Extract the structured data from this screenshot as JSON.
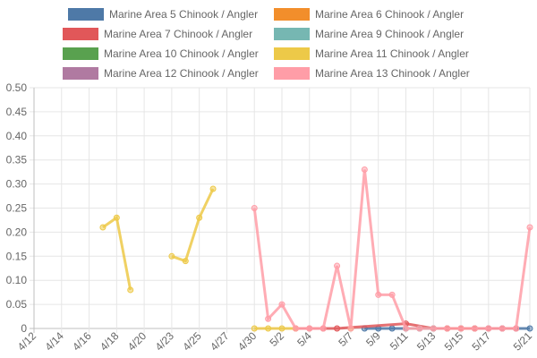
{
  "chart_data": {
    "type": "line",
    "title": "",
    "xlabel": "",
    "ylabel": "",
    "ylim": [
      0,
      0.5
    ],
    "y_ticks": [
      "0",
      "0.05",
      "0.10",
      "0.15",
      "0.20",
      "0.25",
      "0.30",
      "0.35",
      "0.40",
      "0.45",
      "0.50"
    ],
    "x_tick_labels": [
      "4/12",
      "4/14",
      "4/16",
      "4/18",
      "4/20",
      "4/23",
      "4/25",
      "4/27",
      "4/30",
      "5/2",
      "5/4",
      "5/7",
      "5/9",
      "5/11",
      "5/13",
      "5/15",
      "5/17",
      "5/21"
    ],
    "categories": [
      "4/12",
      "4/13",
      "4/14",
      "4/15",
      "4/16",
      "4/17",
      "4/18",
      "4/19",
      "4/20",
      "4/22",
      "4/23",
      "4/24",
      "4/25",
      "4/26",
      "4/27",
      "4/29",
      "4/30",
      "5/1",
      "5/2",
      "5/3",
      "5/4",
      "5/5",
      "5/6",
      "5/7",
      "5/8",
      "5/9",
      "5/10",
      "5/11",
      "5/12",
      "5/13",
      "5/14",
      "5/15",
      "5/16",
      "5/17",
      "5/18",
      "5/19",
      "5/21"
    ],
    "legend_position": "top",
    "grid": true,
    "series": [
      {
        "name": "Marine Area 5 Chinook / Angler",
        "color": "#4e79a7",
        "points": [
          [
            "5/8",
            0
          ],
          [
            "5/9",
            0
          ],
          [
            "5/10",
            0
          ],
          [
            "5/11",
            0
          ],
          [
            "5/12",
            0
          ],
          [
            "5/13",
            0
          ],
          [
            "5/14",
            0
          ],
          [
            "5/15",
            0
          ],
          [
            "5/16",
            0
          ],
          [
            "5/17",
            0
          ],
          [
            "5/18",
            0
          ],
          [
            "5/19",
            0
          ],
          [
            "5/21",
            0
          ]
        ]
      },
      {
        "name": "Marine Area 6 Chinook / Angler",
        "color": "#f28e2b",
        "points": [
          [
            "5/14",
            0
          ],
          [
            "5/15",
            0
          ],
          [
            "5/16",
            0
          ]
        ]
      },
      {
        "name": "Marine Area 7 Chinook / Angler",
        "color": "#e15759",
        "points": [
          [
            "5/3",
            0
          ],
          [
            "5/4",
            0
          ],
          [
            "5/5",
            0
          ],
          [
            "5/6",
            0
          ],
          [
            "5/11",
            0.01
          ],
          [
            "5/13",
            0
          ],
          [
            "5/14",
            0
          ],
          [
            "5/15",
            0
          ],
          [
            "5/16",
            0
          ],
          [
            "5/17",
            0
          ],
          [
            "5/18",
            0
          ],
          [
            "5/19",
            0
          ]
        ]
      },
      {
        "name": "Marine Area 9 Chinook / Angler",
        "color": "#76b7b2",
        "points": [
          [
            "5/11",
            0
          ],
          [
            "5/12",
            0
          ],
          [
            "5/13",
            0
          ]
        ]
      },
      {
        "name": "Marine Area 10 Chinook / Angler",
        "color": "#59a14f",
        "points": []
      },
      {
        "name": "Marine Area 11 Chinook / Angler",
        "color": "#edc948",
        "points": [
          [
            "4/17",
            0.21
          ],
          [
            "4/18",
            0.23
          ],
          [
            "4/19",
            0.08
          ],
          null,
          [
            "4/23",
            0.15
          ],
          [
            "4/24",
            0.14
          ],
          [
            "4/25",
            0.23
          ],
          [
            "4/26",
            0.29
          ],
          null,
          [
            "4/30",
            0
          ],
          [
            "5/1",
            0
          ],
          [
            "5/2",
            0
          ],
          [
            "5/3",
            0
          ],
          null,
          [
            "5/7",
            0
          ]
        ]
      },
      {
        "name": "Marine Area 12 Chinook / Angler",
        "color": "#b07aa1",
        "points": []
      },
      {
        "name": "Marine Area 13 Chinook / Angler",
        "color": "#ff9da7",
        "points": [
          [
            "4/30",
            0.25
          ],
          [
            "5/1",
            0.02
          ],
          [
            "5/2",
            0.05
          ],
          [
            "5/3",
            0
          ],
          [
            "5/4",
            0
          ],
          [
            "5/5",
            0
          ],
          [
            "5/6",
            0.13
          ],
          [
            "5/7",
            0
          ],
          [
            "5/8",
            0.33
          ],
          [
            "5/9",
            0.07
          ],
          [
            "5/10",
            0.07
          ],
          [
            "5/11",
            0
          ],
          [
            "5/12",
            0
          ],
          [
            "5/13",
            0
          ],
          [
            "5/14",
            0
          ],
          [
            "5/15",
            0
          ],
          [
            "5/16",
            0
          ],
          [
            "5/17",
            0
          ],
          [
            "5/18",
            0
          ],
          [
            "5/19",
            0
          ],
          [
            "5/21",
            0.21
          ]
        ]
      }
    ]
  }
}
